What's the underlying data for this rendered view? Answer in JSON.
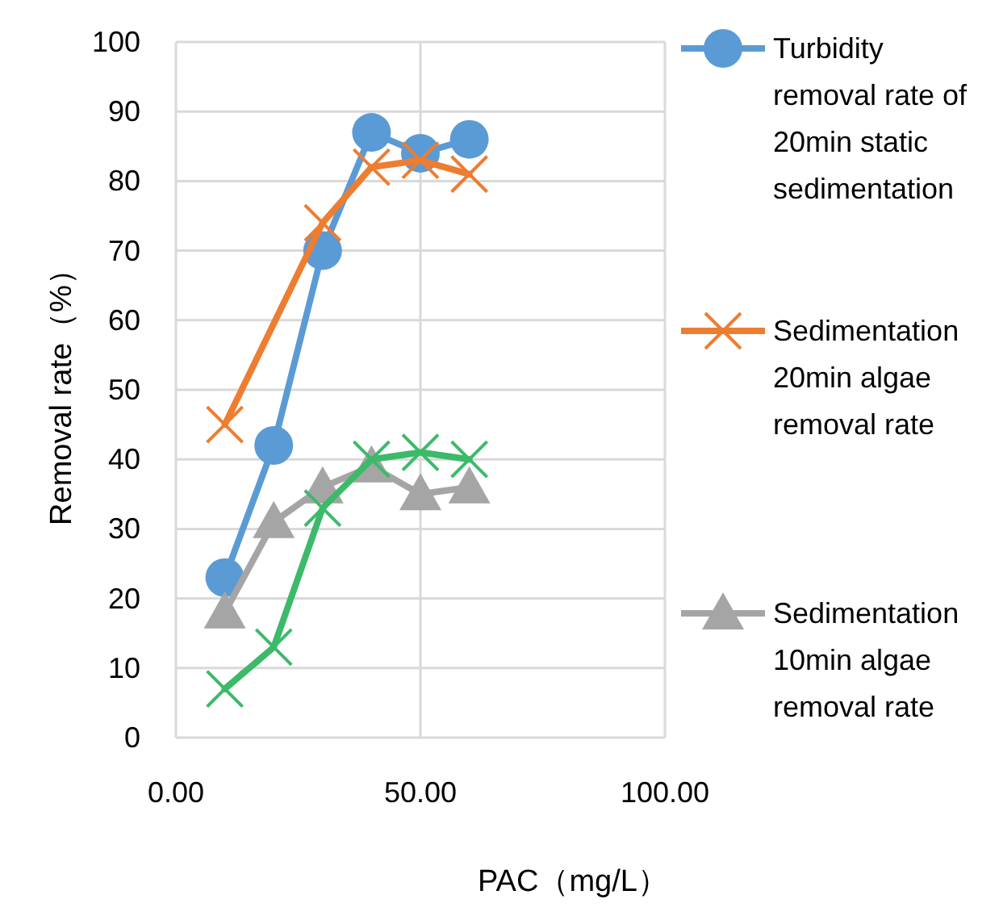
{
  "chart_data": {
    "type": "line",
    "xlabel": "PAC（mg/L）",
    "ylabel": "Removal rate（%）",
    "xlim": [
      0,
      100
    ],
    "xticks": [
      {
        "value": 0,
        "label": "0.00"
      },
      {
        "value": 50,
        "label": "50.00"
      },
      {
        "value": 100,
        "label": "100.00"
      }
    ],
    "ylim": [
      0,
      100
    ],
    "yticks": [
      0,
      10,
      20,
      30,
      40,
      50,
      60,
      70,
      80,
      90,
      100
    ],
    "grid": true,
    "legend": "right",
    "series": [
      {
        "name": "Turbidity removal rate of 20min static sedimentation",
        "color": "#5b9bd5",
        "marker": "circle",
        "x": [
          10,
          20,
          30,
          40,
          50,
          60
        ],
        "values": [
          23,
          42,
          70,
          87,
          84,
          86
        ]
      },
      {
        "name": "Sedimentation 20min algae removal rate",
        "color": "#ed7d31",
        "marker": "cross",
        "x": [
          10,
          30,
          40,
          50,
          60
        ],
        "values": [
          45,
          74,
          82,
          83,
          81
        ]
      },
      {
        "name": "Sedimentation 10min algae removal rate",
        "color": "#a5a5a5",
        "marker": "triangle",
        "x": [
          10,
          20,
          30,
          40,
          50,
          60
        ],
        "values": [
          18,
          31,
          36,
          39,
          35,
          36
        ]
      },
      {
        "color": "#3cba6a",
        "marker": "cross",
        "x": [
          10,
          20,
          30,
          40,
          50,
          60
        ],
        "values": [
          7,
          13,
          33,
          40,
          41,
          40
        ]
      }
    ]
  }
}
